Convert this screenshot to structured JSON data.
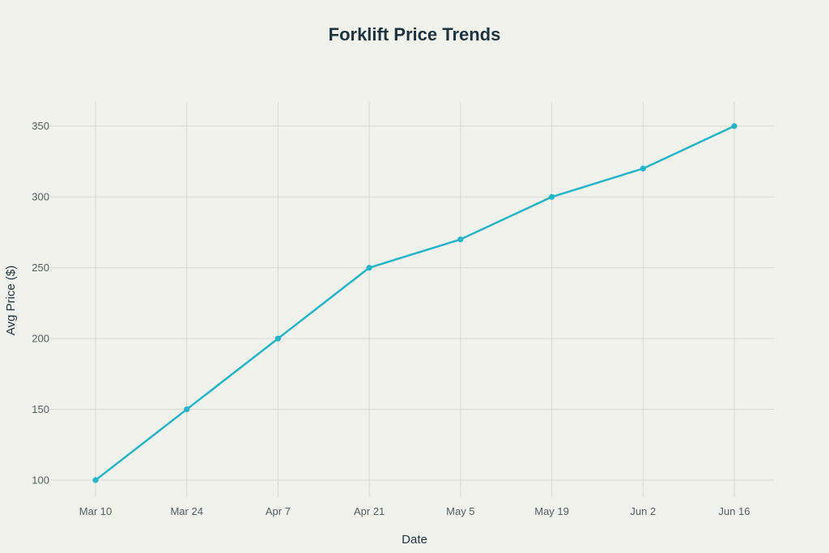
{
  "chart_data": {
    "type": "line",
    "title": "Forklift Price Trends",
    "xlabel": "Date",
    "ylabel": "Avg Price ($)",
    "categories": [
      "Mar 10",
      "Mar 24",
      "Apr 7",
      "Apr 21",
      "May 5",
      "May 19",
      "Jun 2",
      "Jun 16"
    ],
    "series": [
      {
        "values": [
          100,
          150,
          200,
          250,
          270,
          300,
          320,
          350
        ]
      }
    ],
    "yticks": [
      100,
      150,
      200,
      250,
      300,
      350
    ],
    "ylim": [
      88,
      367
    ],
    "grid": true,
    "legend": "none",
    "colors": {
      "background": "#f2f2ed",
      "line": "#25b5c8",
      "grid": "#d7d8d3"
    }
  }
}
